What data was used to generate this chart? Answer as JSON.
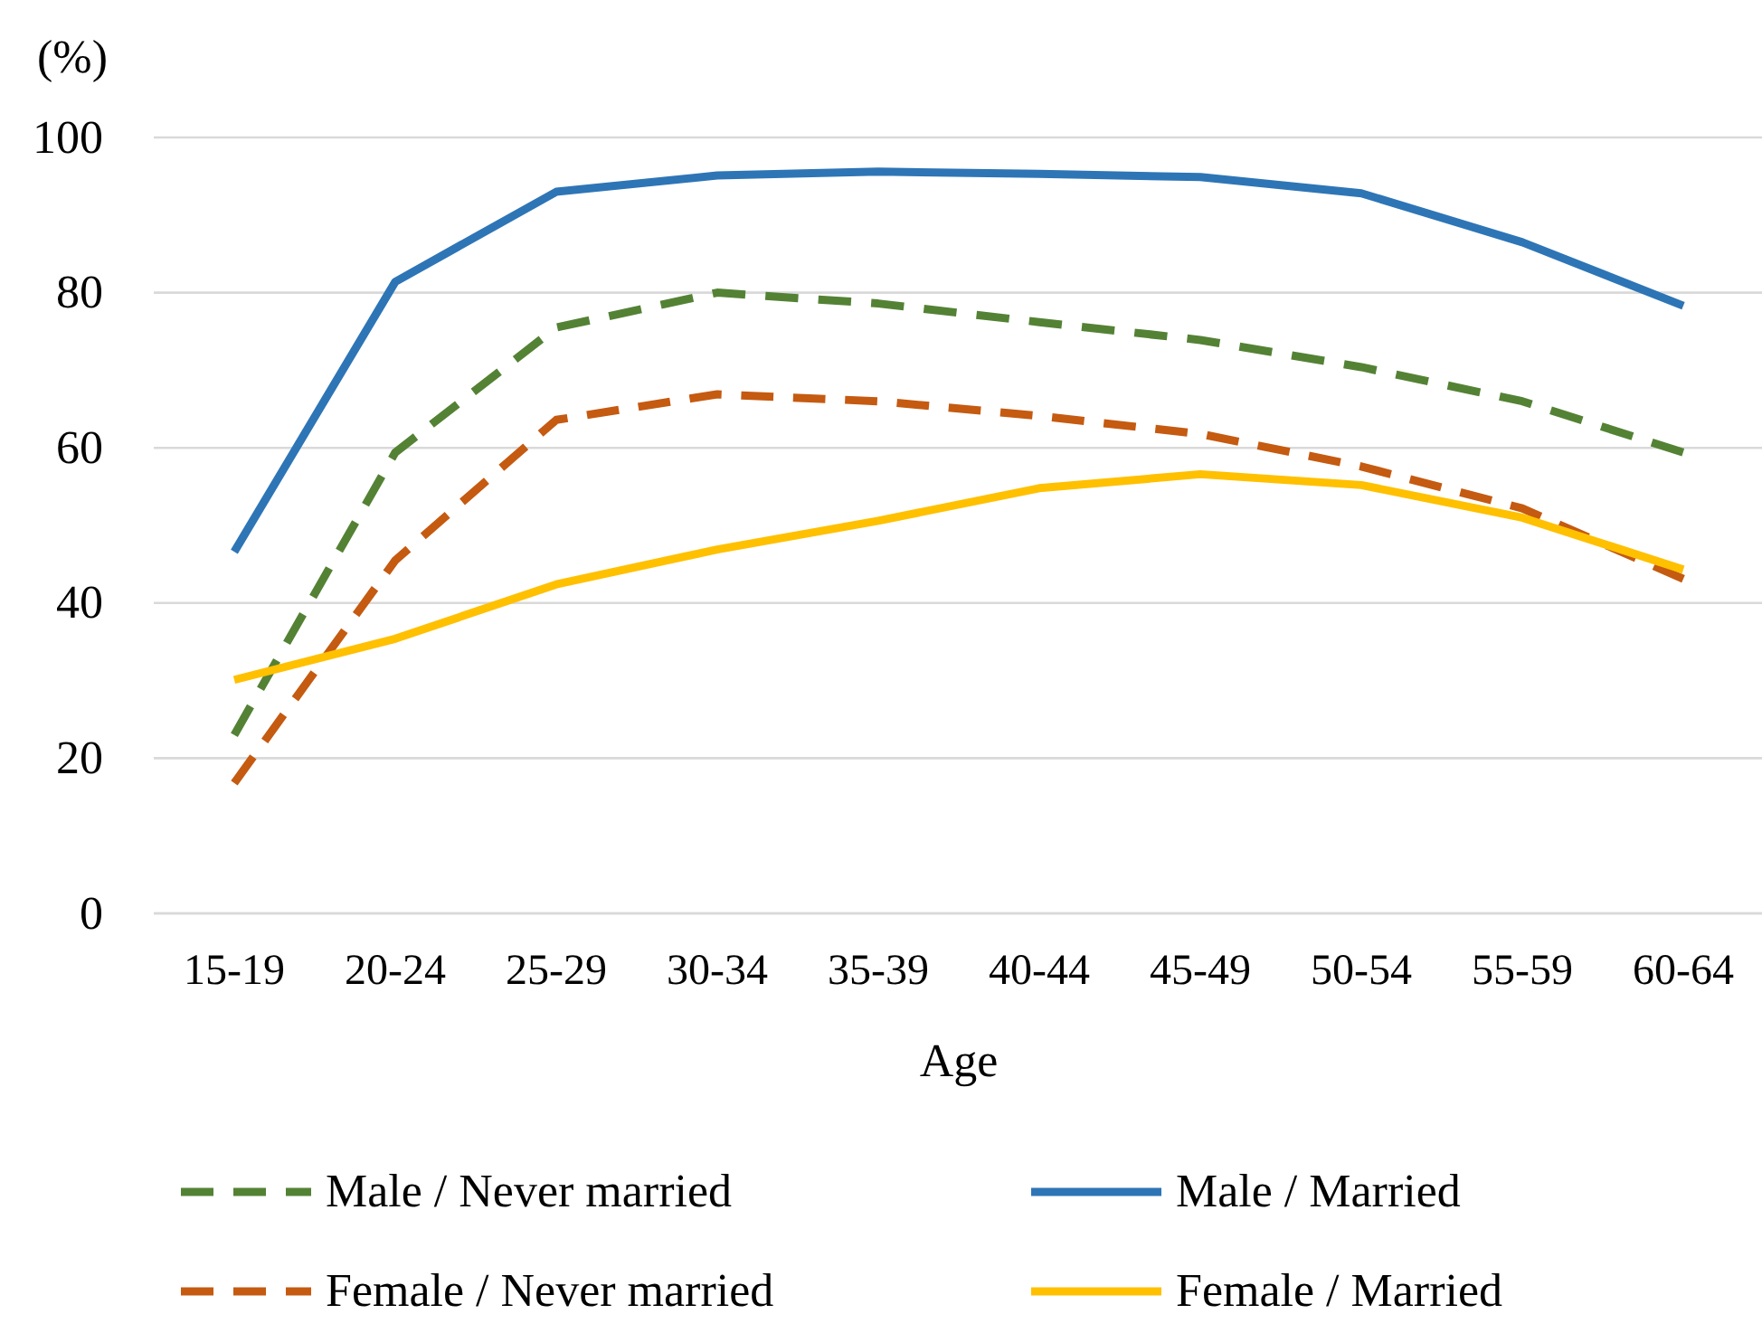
{
  "chart_data": {
    "type": "line",
    "ylabel": "(%)",
    "xlabel": "Age",
    "categories": [
      "15-19",
      "20-24",
      "25-29",
      "30-34",
      "35-39",
      "40-44",
      "45-49",
      "50-54",
      "55-59",
      "60-64"
    ],
    "ylim": [
      0,
      100
    ],
    "yticks": [
      0,
      20,
      40,
      60,
      80,
      100
    ],
    "grid": "y",
    "legend": "bottom",
    "series": [
      {
        "name": "Male / Never married",
        "color": "#548235",
        "line_style": "dashed",
        "values": [
          23,
          59.4,
          75.5,
          80,
          78.6,
          76.2,
          73.9,
          70.4,
          66,
          59.4
        ]
      },
      {
        "name": "Male / Married",
        "color": "#2e75b6",
        "line_style": "solid",
        "values": [
          46.6,
          81.4,
          93,
          95.1,
          95.6,
          95.3,
          94.9,
          92.8,
          86.5,
          78.3
        ]
      },
      {
        "name": "Female / Never married",
        "color": "#c55a11",
        "line_style": "dashed",
        "values": [
          16.8,
          45.5,
          63.6,
          66.9,
          66,
          64.1,
          61.8,
          57.6,
          52.2,
          43.1
        ]
      },
      {
        "name": "Female / Married",
        "color": "#ffc000",
        "line_style": "solid",
        "values": [
          30.1,
          35.4,
          42.4,
          46.9,
          50.6,
          54.8,
          56.6,
          55.2,
          51,
          44.3
        ]
      }
    ]
  }
}
